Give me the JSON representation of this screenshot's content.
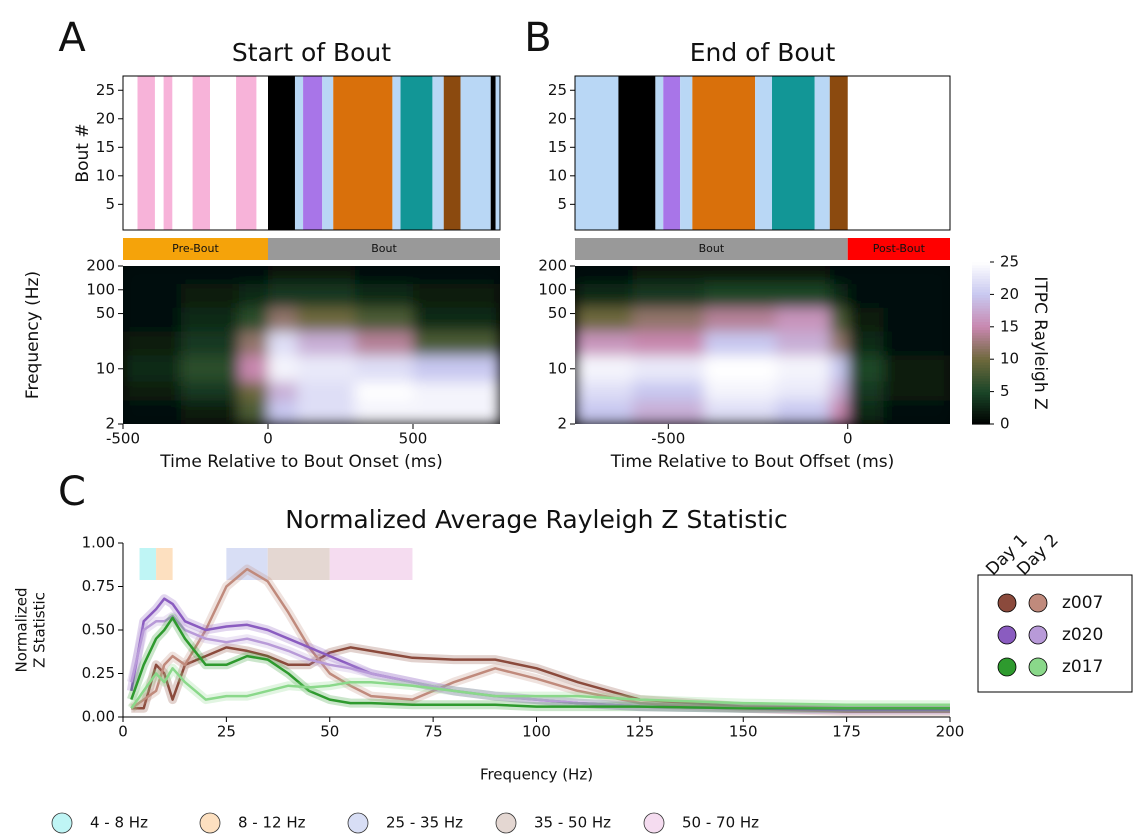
{
  "chart_data": [
    {
      "type": "raster",
      "panel": "A",
      "title": "Start of Bout",
      "ylabel": "Bout #",
      "xlim": [
        -500,
        800
      ],
      "ylim": [
        0.5,
        27.5
      ],
      "yticks": [
        5,
        10,
        15,
        20,
        25
      ],
      "bands": [
        {
          "color": "#f7b3d9",
          "start": -450,
          "end": -390
        },
        {
          "color": "#f7b3d9",
          "start": -360,
          "end": -330
        },
        {
          "color": "#f7b3d9",
          "start": -260,
          "end": -200
        },
        {
          "color": "#f7b3d9",
          "start": -110,
          "end": -40
        },
        {
          "color": "#000000",
          "start": 0,
          "end": 93
        },
        {
          "color": "#b9d7f5",
          "start": 93,
          "end": 121
        },
        {
          "color": "#a875e8",
          "start": 121,
          "end": 187
        },
        {
          "color": "#b9d7f5",
          "start": 187,
          "end": 225
        },
        {
          "color": "#d9700b",
          "start": 225,
          "end": 429
        },
        {
          "color": "#b9d7f5",
          "start": 429,
          "end": 457
        },
        {
          "color": "#129696",
          "start": 457,
          "end": 567
        },
        {
          "color": "#b9d7f5",
          "start": 567,
          "end": 606
        },
        {
          "color": "#8b4a0f",
          "start": 606,
          "end": 664
        },
        {
          "color": "#b9d7f5",
          "start": 664,
          "end": 768
        },
        {
          "color": "#000000",
          "start": 768,
          "end": 785
        },
        {
          "color": "#b9d7f5",
          "start": 785,
          "end": 800
        }
      ],
      "epochs": [
        {
          "label": "Pre-Bout",
          "color": "#f5a30a",
          "start": -500,
          "end": 0
        },
        {
          "label": "Bout",
          "color": "#999999",
          "start": 0,
          "end": 800
        }
      ]
    },
    {
      "type": "heatmap",
      "xlabel": "Time Relative to Bout Onset (ms)",
      "ylabel": "Frequency (Hz)",
      "xlim": [
        -500,
        800
      ],
      "ylim": [
        2,
        200
      ],
      "log_y": true,
      "xticks": [
        -500,
        0,
        500
      ],
      "yticks": [
        2,
        10,
        50,
        100,
        200
      ],
      "x_edges": [
        -500,
        -300,
        -100,
        0,
        100,
        300,
        500,
        800
      ],
      "y_edges": [
        2,
        4,
        7,
        15,
        30,
        60,
        120,
        200
      ],
      "z": [
        [
          1,
          2,
          8,
          20,
          22,
          24,
          24
        ],
        [
          2,
          4,
          10,
          18,
          22,
          25,
          24
        ],
        [
          3,
          6,
          15,
          24,
          23,
          22,
          20
        ],
        [
          2,
          4,
          12,
          22,
          18,
          14,
          8
        ],
        [
          1,
          3,
          6,
          12,
          10,
          8,
          3
        ],
        [
          1,
          2,
          3,
          4,
          4,
          3,
          2
        ],
        [
          1,
          1,
          1,
          2,
          2,
          1,
          1
        ]
      ]
    },
    {
      "type": "raster",
      "panel": "B",
      "title": "End of Bout",
      "xlim": [
        -760,
        285
      ],
      "ylim": [
        0.5,
        27.5
      ],
      "yticks": [
        5,
        10,
        15,
        20,
        25
      ],
      "bands": [
        {
          "color": "#b9d7f5",
          "start": -760,
          "end": -639
        },
        {
          "color": "#000000",
          "start": -639,
          "end": -536
        },
        {
          "color": "#b9d7f5",
          "start": -536,
          "end": -514
        },
        {
          "color": "#a875e8",
          "start": -514,
          "end": -467
        },
        {
          "color": "#b9d7f5",
          "start": -467,
          "end": -433
        },
        {
          "color": "#d9700b",
          "start": -433,
          "end": -258
        },
        {
          "color": "#b9d7f5",
          "start": -258,
          "end": -211
        },
        {
          "color": "#129696",
          "start": -211,
          "end": -92
        },
        {
          "color": "#b9d7f5",
          "start": -92,
          "end": -50
        },
        {
          "color": "#8b4a0f",
          "start": -50,
          "end": 0
        }
      ],
      "epochs": [
        {
          "label": "Bout",
          "color": "#999999",
          "start": -760,
          "end": 0
        },
        {
          "label": "Post-Bout",
          "color": "#ff0000",
          "start": 0,
          "end": 285
        }
      ]
    },
    {
      "type": "heatmap",
      "xlabel": "Time Relative to Bout Offset (ms)",
      "xlim": [
        -760,
        285
      ],
      "ylim": [
        2,
        200
      ],
      "log_y": true,
      "xticks": [
        -500,
        0
      ],
      "yticks": [
        2,
        10,
        50,
        100,
        200
      ],
      "x_edges": [
        -760,
        -600,
        -400,
        -200,
        -50,
        0,
        100,
        285
      ],
      "y_edges": [
        2,
        4,
        7,
        15,
        30,
        60,
        120,
        200
      ],
      "z": [
        [
          20,
          18,
          22,
          20,
          15,
          3,
          1
        ],
        [
          22,
          20,
          24,
          23,
          18,
          4,
          2
        ],
        [
          24,
          23,
          25,
          24,
          20,
          5,
          2
        ],
        [
          16,
          15,
          20,
          18,
          12,
          3,
          1
        ],
        [
          10,
          12,
          14,
          16,
          8,
          2,
          1
        ],
        [
          3,
          4,
          5,
          5,
          3,
          1,
          1
        ],
        [
          1,
          2,
          2,
          2,
          1,
          1,
          1
        ]
      ],
      "colorbar": {
        "label": "ITPC Rayleigh Z",
        "lim": [
          0,
          25
        ],
        "ticks": [
          0,
          5,
          10,
          15,
          20,
          25
        ]
      }
    },
    {
      "type": "line",
      "panel": "C",
      "title": "Normalized Average Rayleigh Z Statistic",
      "xlabel": "Frequency (Hz)",
      "ylabel": [
        "Normalized",
        "Z Statistic"
      ],
      "xlim": [
        0,
        200
      ],
      "ylim": [
        0,
        1
      ],
      "xticks": [
        0,
        25,
        50,
        75,
        100,
        125,
        150,
        175,
        200
      ],
      "yticks": [
        {
          "value": 0,
          "label": "0.00"
        },
        {
          "value": 0.25,
          "label": "0.25"
        },
        {
          "value": 0.5,
          "label": "0.50"
        },
        {
          "value": 0.75,
          "label": "0.75"
        },
        {
          "value": 1,
          "label": "1.00"
        }
      ],
      "bands": [
        {
          "name": "4 - 8 Hz",
          "color": "#bff5f5",
          "start": 4,
          "end": 8
        },
        {
          "name": "8 - 12 Hz",
          "color": "#fde0c0",
          "start": 8,
          "end": 12
        },
        {
          "name": "25 - 35 Hz",
          "color": "#d8def5",
          "start": 25,
          "end": 35
        },
        {
          "name": "35 - 50 Hz",
          "color": "#e4d7d2",
          "start": 35,
          "end": 50
        },
        {
          "name": "50 - 70 Hz",
          "color": "#f5dcf0",
          "start": 50,
          "end": 70
        }
      ],
      "legend_columns": [
        "Day 1",
        "Day 2"
      ],
      "x": [
        2,
        5,
        8,
        10,
        12,
        15,
        20,
        25,
        30,
        35,
        40,
        45,
        50,
        55,
        60,
        70,
        80,
        90,
        100,
        110,
        125,
        150,
        175,
        200
      ],
      "groups": [
        {
          "name": "z007",
          "series": [
            {
              "color": "#8b4a3c",
              "values": [
                0.05,
                0.05,
                0.3,
                0.25,
                0.1,
                0.3,
                0.35,
                0.4,
                0.38,
                0.35,
                0.3,
                0.3,
                0.37,
                0.4,
                0.38,
                0.34,
                0.33,
                0.33,
                0.28,
                0.2,
                0.1,
                0.06,
                0.05,
                0.05
              ]
            },
            {
              "color": "#c08a7c",
              "values": [
                0.05,
                0.1,
                0.15,
                0.3,
                0.35,
                0.3,
                0.5,
                0.75,
                0.85,
                0.78,
                0.6,
                0.4,
                0.25,
                0.18,
                0.12,
                0.1,
                0.2,
                0.28,
                0.22,
                0.15,
                0.08,
                0.05,
                0.03,
                0.03
              ]
            }
          ]
        },
        {
          "name": "z020",
          "series": [
            {
              "color": "#8a5cc0",
              "values": [
                0.15,
                0.55,
                0.62,
                0.68,
                0.65,
                0.55,
                0.5,
                0.52,
                0.53,
                0.5,
                0.45,
                0.4,
                0.35,
                0.3,
                0.25,
                0.2,
                0.15,
                0.12,
                0.1,
                0.08,
                0.06,
                0.05,
                0.04,
                0.04
              ]
            },
            {
              "color": "#b89ad8",
              "values": [
                0.2,
                0.5,
                0.55,
                0.55,
                0.58,
                0.5,
                0.45,
                0.43,
                0.45,
                0.42,
                0.38,
                0.33,
                0.3,
                0.28,
                0.25,
                0.2,
                0.15,
                0.12,
                0.1,
                0.08,
                0.06,
                0.05,
                0.05,
                0.05
              ]
            }
          ]
        },
        {
          "name": "z017",
          "series": [
            {
              "color": "#2e9a2e",
              "values": [
                0.1,
                0.3,
                0.45,
                0.5,
                0.57,
                0.45,
                0.3,
                0.3,
                0.35,
                0.33,
                0.25,
                0.15,
                0.1,
                0.08,
                0.08,
                0.07,
                0.07,
                0.07,
                0.06,
                0.06,
                0.06,
                0.05,
                0.05,
                0.05
              ]
            },
            {
              "color": "#8ad88a",
              "values": [
                0.05,
                0.15,
                0.25,
                0.2,
                0.28,
                0.2,
                0.1,
                0.12,
                0.12,
                0.15,
                0.18,
                0.17,
                0.18,
                0.2,
                0.2,
                0.18,
                0.15,
                0.12,
                0.12,
                0.12,
                0.1,
                0.08,
                0.07,
                0.07
              ]
            }
          ]
        }
      ]
    }
  ]
}
